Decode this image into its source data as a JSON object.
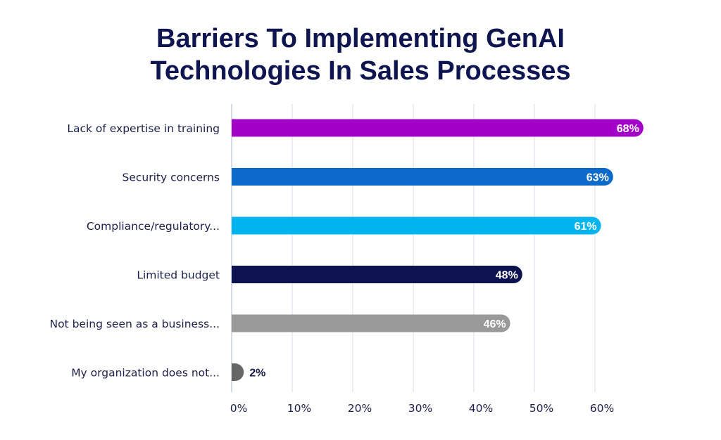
{
  "chart_data": {
    "type": "bar",
    "orientation": "horizontal",
    "title_lines": [
      "Barriers To Implementing GenAI",
      "Technologies In Sales Processes"
    ],
    "categories": [
      "Lack of expertise in training",
      "Security concerns",
      "Compliance/regulatory...",
      "Limited budget",
      "Not being seen as a business...",
      "My organization does not..."
    ],
    "values": [
      68,
      63,
      61,
      48,
      46,
      2
    ],
    "value_labels": [
      "68%",
      "63%",
      "61%",
      "48%",
      "46%",
      "2%"
    ],
    "colors": [
      "#a300c7",
      "#0d6acb",
      "#00b4ef",
      "#0d1250",
      "#999999",
      "#666666"
    ],
    "label_colors": [
      "#ffffff",
      "#ffffff",
      "#ffffff",
      "#ffffff",
      "#ffffff",
      "#1b1f4d"
    ],
    "xticks": [
      0,
      10,
      20,
      30,
      40,
      50,
      60
    ],
    "xtick_labels": [
      "0%",
      "10%",
      "20%",
      "30%",
      "40%",
      "50%",
      "60%"
    ],
    "xlim": [
      0,
      70
    ],
    "grid": true,
    "xlabel": "",
    "ylabel": ""
  }
}
